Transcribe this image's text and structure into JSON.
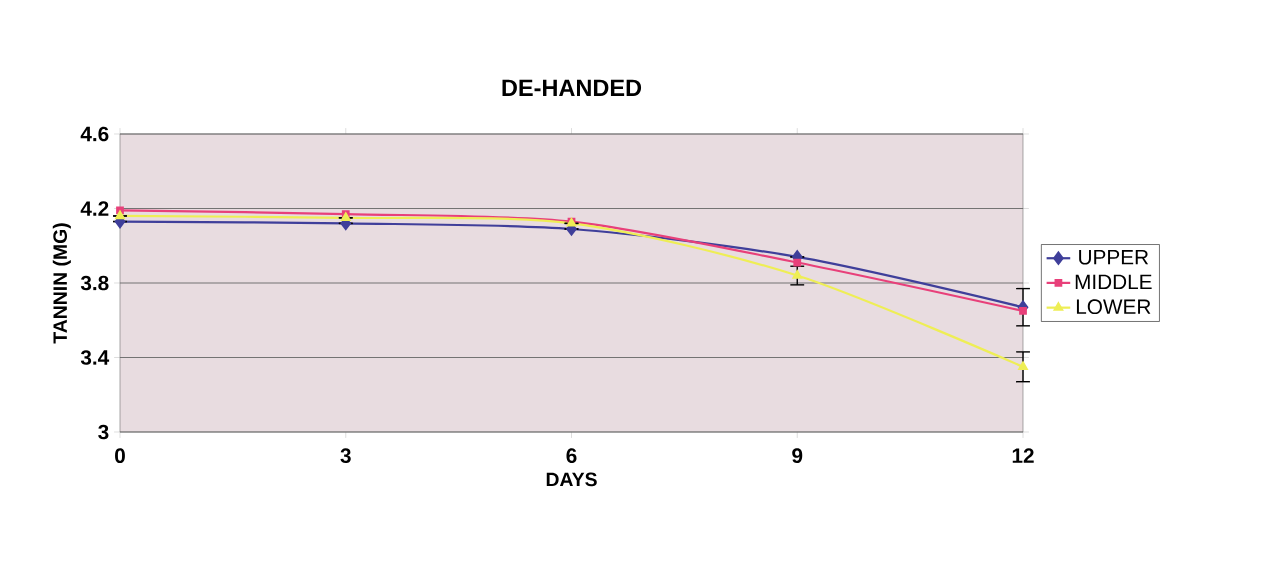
{
  "chart_data": {
    "type": "line",
    "title": "DE-HANDED",
    "xlabel": "DAYS",
    "ylabel": "TANNIN (MG)",
    "x": [
      0,
      3,
      6,
      9,
      12
    ],
    "series": [
      {
        "name": "UPPER",
        "color": "#3f3f9a",
        "marker": "diamond",
        "values": [
          4.13,
          4.12,
          4.09,
          3.94,
          3.67
        ],
        "errors": [
          null,
          null,
          null,
          null,
          0.1
        ]
      },
      {
        "name": "MIDDLE",
        "color": "#e8407a",
        "marker": "square",
        "values": [
          4.19,
          4.17,
          4.13,
          3.91,
          3.65
        ],
        "errors": [
          null,
          null,
          null,
          null,
          null
        ]
      },
      {
        "name": "LOWER",
        "color": "#eeee55",
        "marker": "triangle",
        "values": [
          4.16,
          4.15,
          4.12,
          3.84,
          3.35
        ],
        "errors": [
          null,
          null,
          null,
          0.05,
          0.08
        ]
      }
    ],
    "xlim": [
      0,
      12
    ],
    "xticks": [
      0,
      3,
      6,
      9,
      12
    ],
    "ylim": [
      3,
      4.6
    ],
    "yticks": [
      3,
      3.4,
      3.8,
      4.2,
      4.6
    ],
    "grid": "y",
    "legend": "right"
  }
}
